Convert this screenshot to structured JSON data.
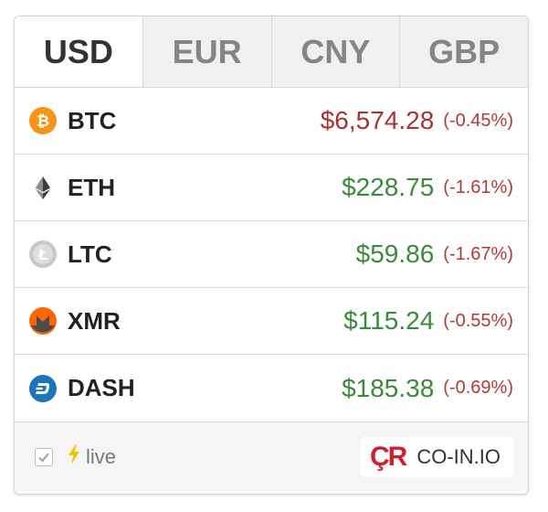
{
  "tabs": [
    {
      "label": "USD",
      "active": true
    },
    {
      "label": "EUR",
      "active": false
    },
    {
      "label": "CNY",
      "active": false
    },
    {
      "label": "GBP",
      "active": false
    }
  ],
  "coins": [
    {
      "symbol": "BTC",
      "price": "$6,574.28",
      "change": "(-0.45%)",
      "price_color": "#a83232",
      "icon": "bitcoin-icon"
    },
    {
      "symbol": "ETH",
      "price": "$228.75",
      "change": "(-1.61%)",
      "price_color": "#3a8a3a",
      "icon": "ethereum-icon"
    },
    {
      "symbol": "LTC",
      "price": "$59.86",
      "change": "(-1.67%)",
      "price_color": "#3a8a3a",
      "icon": "litecoin-icon"
    },
    {
      "symbol": "XMR",
      "price": "$115.24",
      "change": "(-0.55%)",
      "price_color": "#3a8a3a",
      "icon": "monero-icon"
    },
    {
      "symbol": "DASH",
      "price": "$185.38",
      "change": "(-0.69%)",
      "price_color": "#3a8a3a",
      "icon": "dash-icon"
    }
  ],
  "footer": {
    "live_checked": true,
    "live_label": "live",
    "brand_mark": "ÇR",
    "brand_name": "CO-IN.IO"
  },
  "colors": {
    "negative_change": "#b03a3a",
    "brand": "#d0202e",
    "lightning": "#f2c200"
  }
}
